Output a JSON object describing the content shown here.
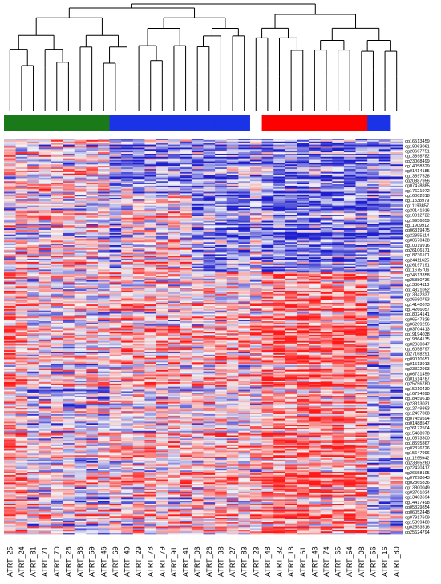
{
  "chart_data": {
    "type": "heatmap",
    "title": "",
    "xlabel": "",
    "ylabel": "",
    "dendrogram": "top",
    "group_colors": {
      "green": "#1a7a1a",
      "blue": "#1a33e6",
      "red": "#ff0000",
      "none": "#ffffff"
    },
    "heat_colors": {
      "low": "#1f1fd0",
      "mid": "#f4f4f4",
      "high": "#ff1a1a"
    },
    "columns": [
      "ATRT_25",
      "ATRT_24",
      "ATRT_81",
      "ATRT_71",
      "ATRT_70",
      "ATRT_28",
      "ATRT_86",
      "ATRT_59",
      "ATRT_46",
      "ATRT_69",
      "ATRT_49",
      "ATRT_29",
      "ATRT_78",
      "ATRT_79",
      "ATRT_91",
      "ATRT_41",
      "ATRT_03",
      "ATRT_26",
      "ATRT_38",
      "ATRT_27",
      "ATRT_83",
      "ATRT_23",
      "ATRT_48",
      "ATRT_32",
      "ATRT_18",
      "ATRT_61",
      "ATRT_43",
      "ATRT_74",
      "ATRT_65",
      "ATRT_54",
      "ATRT_08",
      "ATRT_56",
      "ATRT_16",
      "ATRT_80"
    ],
    "column_groups": [
      "green",
      "green",
      "green",
      "green",
      "green",
      "green",
      "green",
      "green",
      "green",
      "blue",
      "blue",
      "blue",
      "blue",
      "blue",
      "blue",
      "blue",
      "blue",
      "blue",
      "blue",
      "blue",
      "blue",
      "none",
      "red",
      "red",
      "red",
      "red",
      "red",
      "red",
      "red",
      "red",
      "red",
      "blue",
      "blue",
      "none"
    ],
    "row_labels": [
      "cg16513459",
      "cg19063061",
      "cg20667751",
      "cg13898782",
      "cg23068499",
      "cg14058329",
      "cg01414185",
      "cg13597528",
      "cg20887956",
      "cg07478885",
      "cg17621972",
      "cg16002818",
      "cg11838979",
      "cg11193857",
      "cg20141916",
      "cg10012722",
      "cg19956859",
      "cg11909912",
      "cg06319475",
      "cg22855114",
      "cg00670438",
      "cg10019916",
      "cg26106171",
      "cg18736101",
      "cg24411625",
      "cg26197191",
      "cg11675706",
      "cg24513358",
      "cg25880736",
      "cg13384113",
      "cg14821052",
      "cg13342837",
      "cg26680793",
      "cg14140673",
      "cg14266057",
      "cg18024141",
      "cg06547326",
      "cg06209256",
      "cg03704413",
      "cg19194038",
      "cg19864135",
      "cg02030847",
      "cg16058797",
      "cg27168291",
      "cg09010651",
      "cg01513913",
      "cg23322993",
      "cg06731459",
      "cg01614787",
      "cg25756780",
      "cg15010430",
      "cg16794398",
      "cg18459618",
      "cg23313031",
      "cg12749863",
      "cg12497808",
      "cg07459594",
      "cg01488547",
      "cg26172504",
      "cg15488978",
      "cg10573300",
      "cg18595867",
      "cg02376726",
      "cg15647996",
      "cg11295942",
      "cg23365260",
      "cg22420417",
      "cg26558195",
      "cg07298643",
      "cg02865836",
      "cg13800049",
      "cg02701024",
      "cg13403694",
      "cg14417498",
      "cg05329854",
      "cg06052448",
      "cg07917609",
      "cg15399480",
      "cg02553516",
      "cg25624794"
    ],
    "row_cluster_boundary_fraction": 0.34,
    "column_blocks_note": "values are methylation beta z-scores shown as blue (low) to red (high)"
  }
}
